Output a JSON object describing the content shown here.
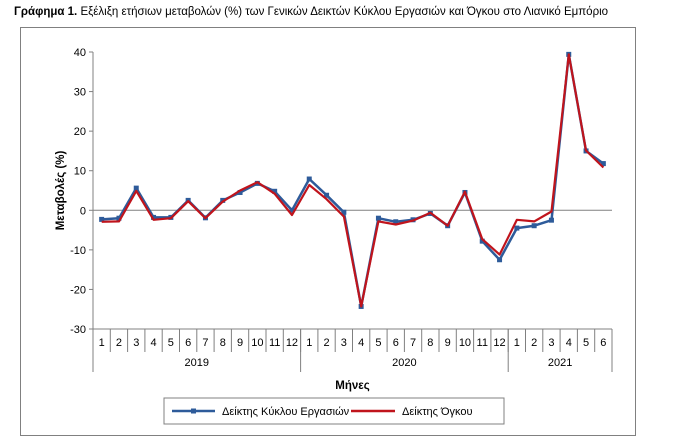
{
  "title": {
    "prefix": "Γράφημα 1.",
    "text": "Εξέλιξη ετήσιων μεταβολών (%) των Γενικών Δεικτών Κύκλου Εργασιών και Όγκου στο Λιανικό Εμπόριο"
  },
  "chart_data": {
    "type": "line",
    "ylabel": "Μεταβολές (%)",
    "xlabel": "Μήνες",
    "ylim": [
      -30,
      40
    ],
    "yticks": [
      -30,
      -20,
      -10,
      0,
      10,
      20,
      30,
      40
    ],
    "grid": false,
    "legend_position": "bottom",
    "categories": [
      "1",
      "2",
      "3",
      "4",
      "5",
      "6",
      "7",
      "8",
      "9",
      "10",
      "11",
      "12",
      "1",
      "2",
      "3",
      "4",
      "5",
      "6",
      "7",
      "8",
      "9",
      "10",
      "11",
      "12",
      "1",
      "2",
      "3",
      "4",
      "5",
      "6"
    ],
    "years": [
      {
        "label": "2019",
        "months": 12
      },
      {
        "label": "2020",
        "months": 12
      },
      {
        "label": "2021",
        "months": 6
      }
    ],
    "series": [
      {
        "name": "Δείκτης Κύκλου Εργασιών",
        "color": "#2E5B9A",
        "marker": "square",
        "values": [
          -2.3,
          -2.0,
          5.6,
          -1.8,
          -1.8,
          2.5,
          -1.9,
          2.5,
          4.5,
          6.8,
          4.8,
          0.0,
          7.9,
          3.8,
          -0.5,
          -24.3,
          -2.0,
          -2.9,
          -2.4,
          -0.8,
          -3.9,
          4.5,
          -7.8,
          -12.5,
          -4.5,
          -3.9,
          -2.5,
          39.4,
          15.0,
          11.8
        ]
      },
      {
        "name": "Δείκτης Όγκου",
        "color": "#C0141C",
        "marker": "none",
        "values": [
          -2.9,
          -2.8,
          4.9,
          -2.4,
          -2.0,
          2.3,
          -2.0,
          2.2,
          5.0,
          7.1,
          4.2,
          -1.2,
          6.4,
          2.8,
          -1.6,
          -24.3,
          -2.8,
          -3.6,
          -2.6,
          -0.6,
          -3.9,
          4.7,
          -7.3,
          -11.2,
          -2.4,
          -2.8,
          -0.3,
          39.4,
          15.1,
          10.8
        ]
      }
    ]
  }
}
